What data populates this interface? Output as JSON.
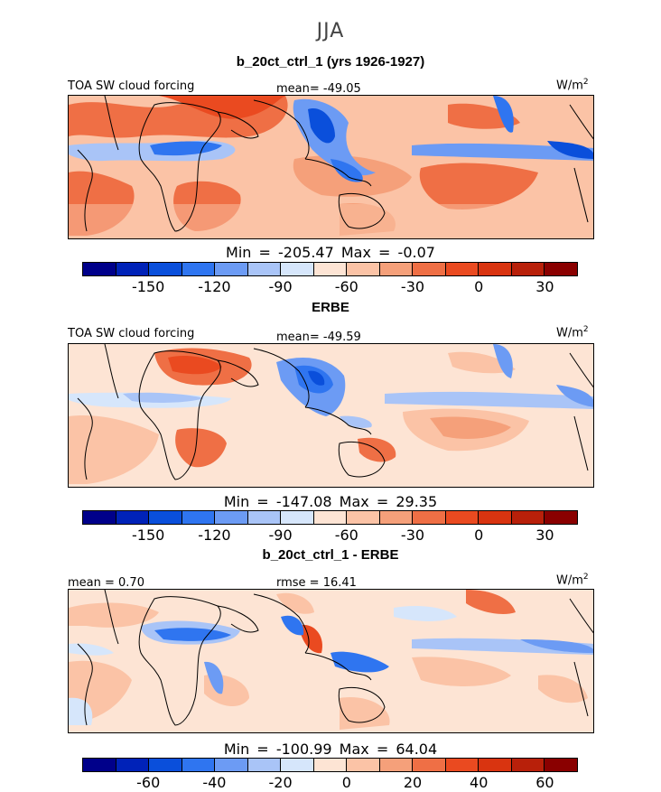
{
  "figure": {
    "season": "JJA",
    "unit": "W/m",
    "unit_exp": "2"
  },
  "palette": [
    "#00008a",
    "#0022b8",
    "#0a4fdb",
    "#2f75f0",
    "#6c9bf4",
    "#a9c4f7",
    "#d6e6fb",
    "#fde4d4",
    "#fbc3a6",
    "#f5a07a",
    "#ef6f45",
    "#ea4a20",
    "#d93410",
    "#b8200a",
    "#8a0000"
  ],
  "panels": [
    {
      "title": "b_20ct_ctrl_1 (yrs 1926-1927)",
      "variable": "TOA SW cloud forcing",
      "mean_text": "mean= -49.05",
      "min_label": "Min =",
      "min_value": "-205.47",
      "max_label": "Max =",
      "max_value": "-0.07",
      "colorbar_ticks": [
        "-150",
        "-120",
        "-90",
        "-60",
        "-30",
        "0",
        "30"
      ]
    },
    {
      "title": "ERBE",
      "variable": "TOA SW cloud forcing",
      "mean_text": "mean= -49.59",
      "min_label": "Min =",
      "min_value": "-147.08",
      "max_label": "Max =",
      "max_value": "29.35",
      "colorbar_ticks": [
        "-150",
        "-120",
        "-90",
        "-60",
        "-30",
        "0",
        "30"
      ]
    },
    {
      "title": "b_20ct_ctrl_1 - ERBE",
      "mean_text": "mean =   0.70",
      "rmse_text": "rmse =  16.41",
      "min_label": "Min =",
      "min_value": "-100.99",
      "max_label": "Max =",
      "max_value": "64.04",
      "colorbar_ticks": [
        "-60",
        "-40",
        "-20",
        "0",
        "20",
        "40",
        "60"
      ]
    }
  ]
}
